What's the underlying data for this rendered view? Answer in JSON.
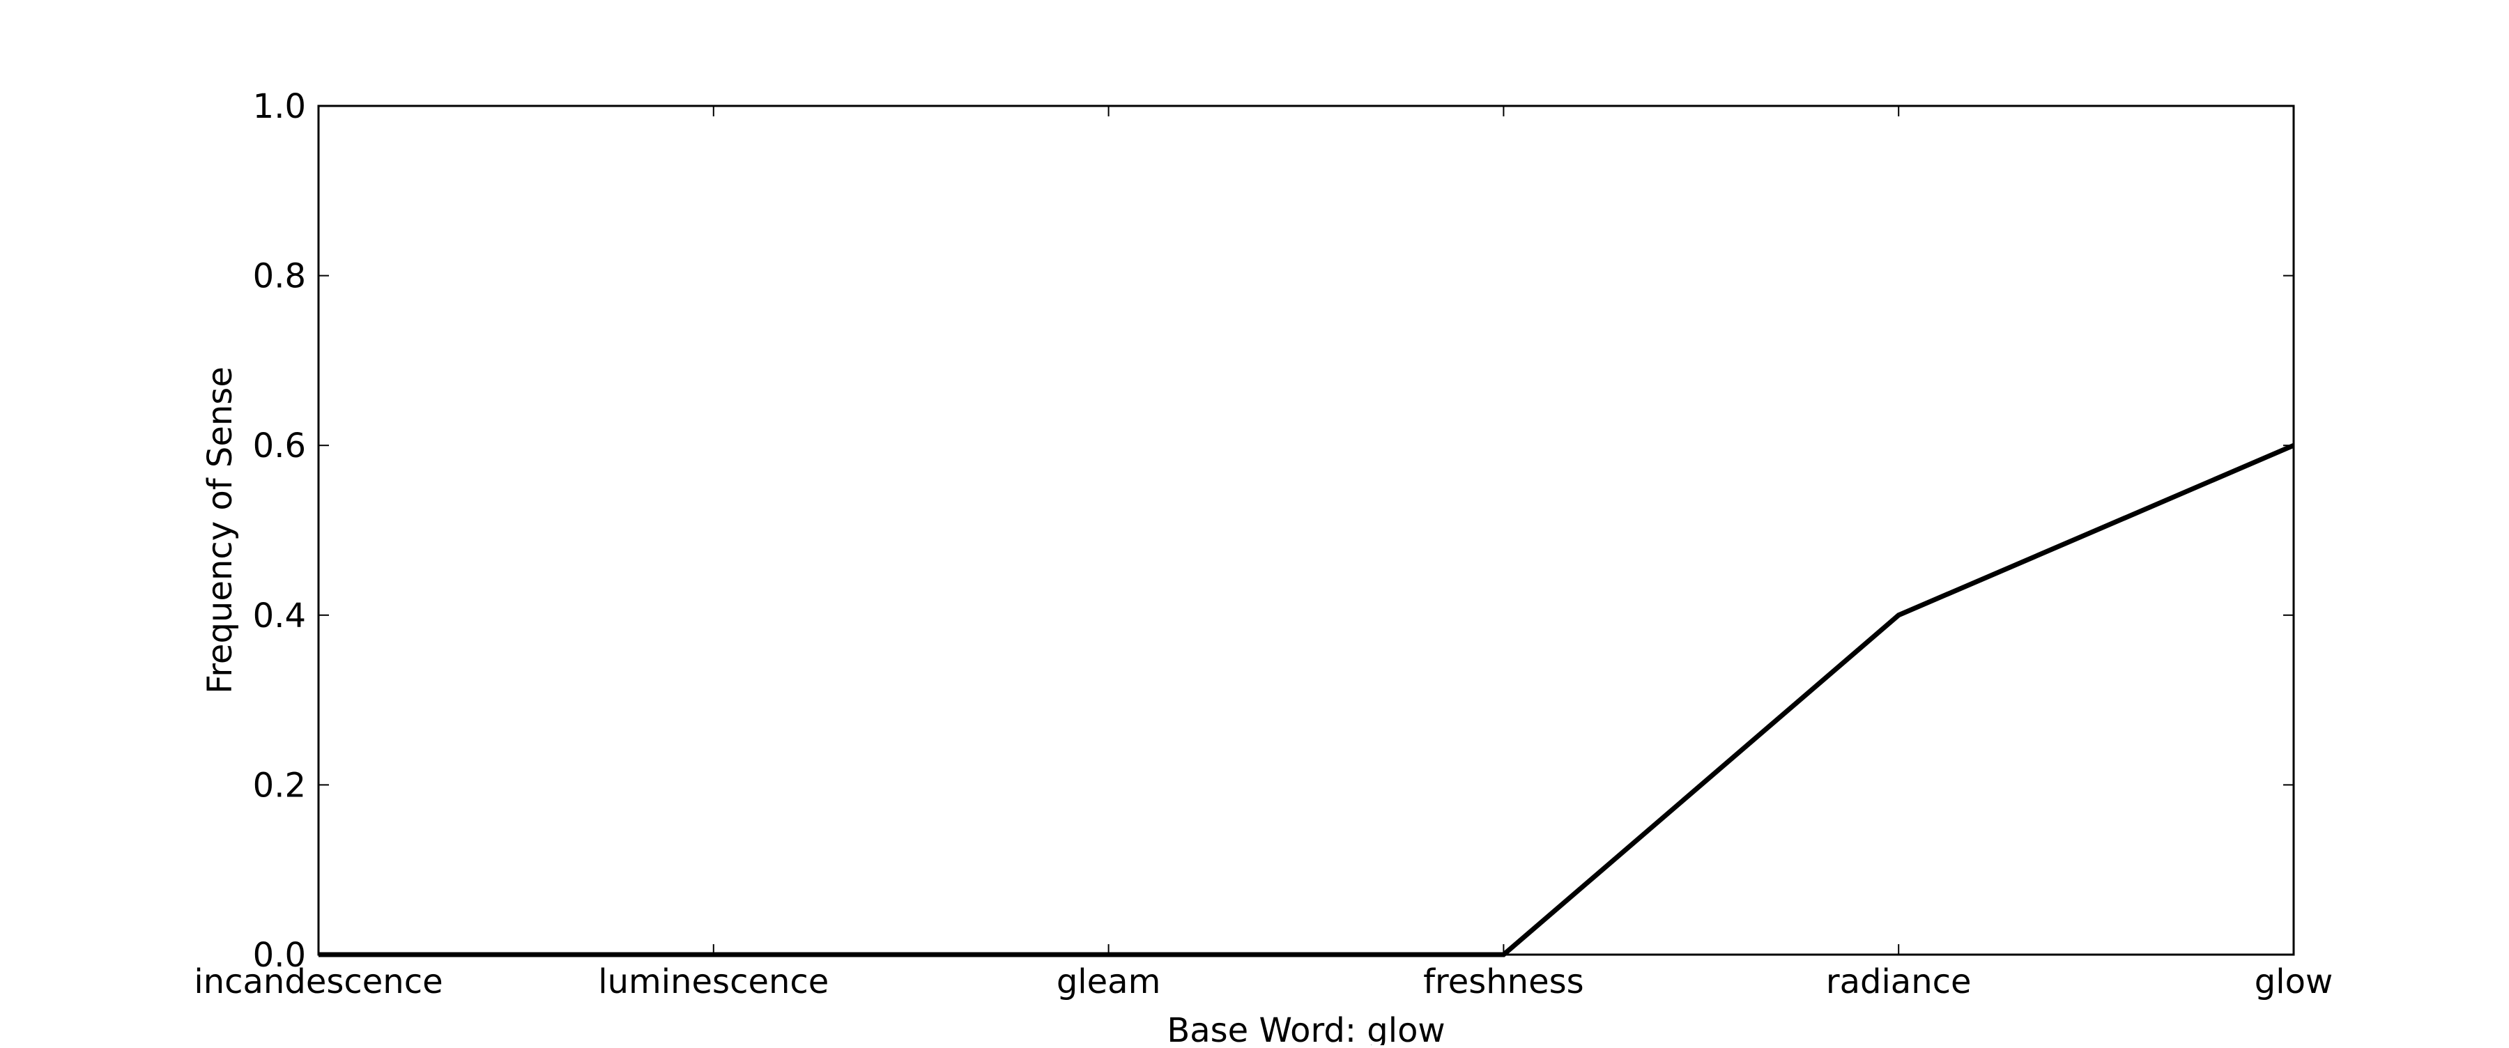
{
  "chart_data": {
    "type": "line",
    "categories": [
      "incandescence",
      "luminescence",
      "gleam",
      "freshness",
      "radiance",
      "glow"
    ],
    "series": [
      {
        "values": [
          0.0,
          0.0,
          0.0,
          0.0,
          0.4,
          0.6
        ]
      }
    ],
    "xlabel": "Base Word: glow",
    "ylabel": "Frequency of Sense",
    "ylim": [
      0.0,
      1.0
    ],
    "yticks": [
      "0.0",
      "0.2",
      "0.4",
      "0.6",
      "0.8",
      "1.0"
    ],
    "grid": false,
    "line_color": "#000000"
  }
}
